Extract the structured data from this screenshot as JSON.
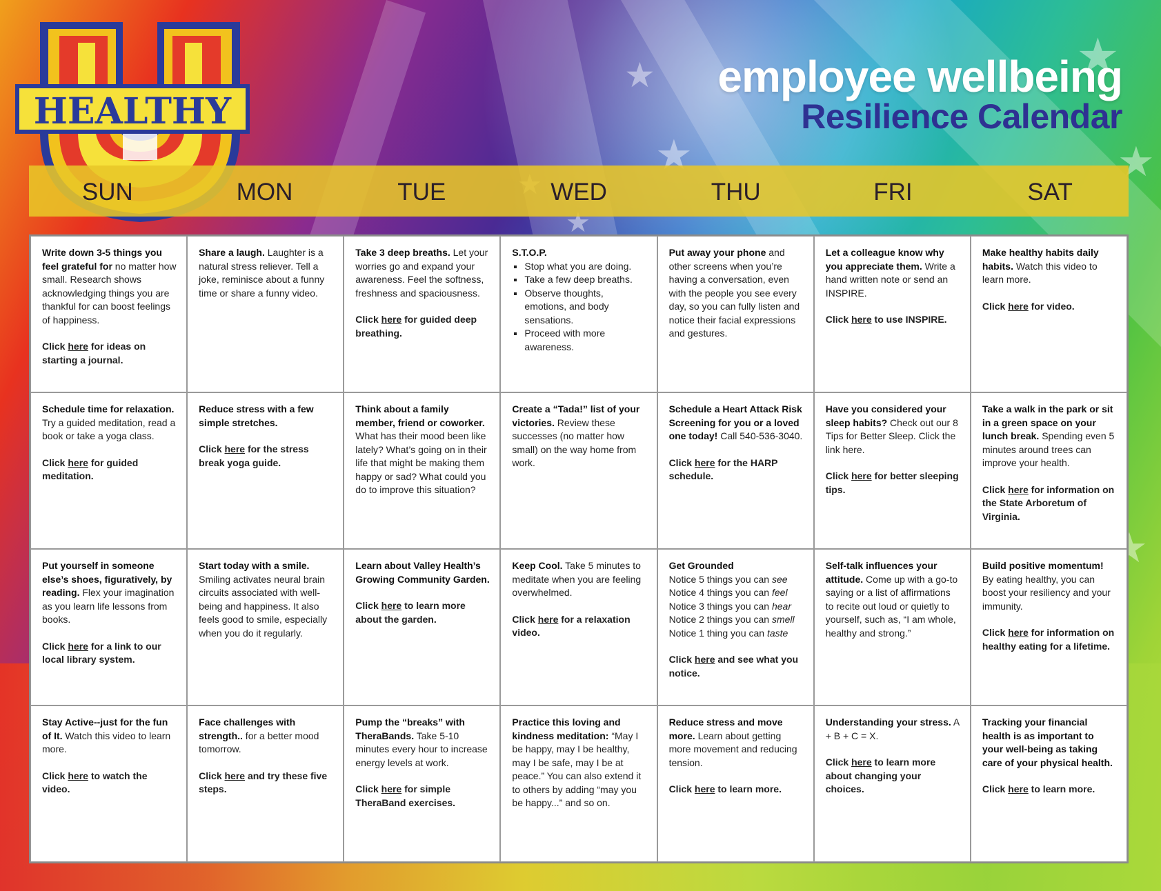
{
  "title": {
    "line1": "employee wellbeing",
    "line2": "Resilience Calendar"
  },
  "logo": {
    "text": "HEALTHY",
    "letter": "U"
  },
  "days": [
    "SUN",
    "MON",
    "TUE",
    "WED",
    "THU",
    "FRI",
    "SAT"
  ],
  "cells": [
    {
      "bold": "Write down 3-5 things you feel grateful for",
      "text": " no matter how small. Research shows acknowledging things you are thankful for can boost feelings of happiness.",
      "click": "Click ",
      "link": "here",
      "after": " for ideas on starting a journal."
    },
    {
      "bold": "Share a laugh.",
      "text": " Laughter is a natural stress reliever. Tell a joke, reminisce about a funny time or share a funny video.",
      "click": "",
      "link": "",
      "after": ""
    },
    {
      "bold": "Take 3 deep breaths.",
      "text": " Let your worries go and expand your awareness. Feel the softness, freshness and spaciousness.",
      "click": "Click ",
      "link": "here",
      "after": " for guided deep breathing."
    },
    {
      "bold": "S.T.O.P.",
      "text": "",
      "list": [
        "Stop what you are doing.",
        "Take a few deep breaths.",
        "Observe thoughts, emotions, and body sensations.",
        "Proceed with more awareness."
      ],
      "click": "",
      "link": "",
      "after": ""
    },
    {
      "bold": "Put away your phone",
      "text": " and other screens when you’re having a conversation, even with the people you see every day, so you can fully listen and notice their facial expressions and gestures.",
      "click": "",
      "link": "",
      "after": ""
    },
    {
      "bold": "Let a colleague know why you appreciate them.",
      "text": " Write a hand written note or send an INSPIRE.",
      "click": "Click ",
      "link": "here",
      "after": " to use INSPIRE."
    },
    {
      "bold": "Make healthy habits daily habits.",
      "text": " Watch this video to learn more.",
      "click": "Click ",
      "link": "here",
      "after": " for video."
    },
    {
      "bold": "Schedule time for relaxation.",
      "text": " Try a guided meditation, read a book or take a yoga class.",
      "click": "Click ",
      "link": "here",
      "after": " for guided meditation."
    },
    {
      "bold": "Reduce stress with a few simple stretches.",
      "text": "",
      "click": "Click ",
      "link": "here",
      "after": " for the stress break yoga guide."
    },
    {
      "bold": "Think about a family member, friend or coworker.",
      "text": " What has their mood been like lately? What’s going on in their life that might be making them happy or sad? What could you do to improve this situation?",
      "click": "",
      "link": "",
      "after": ""
    },
    {
      "bold": "Create a “Tada!” list of your victories.",
      "text": " Review these successes (no matter how small) on the way home from work.",
      "click": "",
      "link": "",
      "after": ""
    },
    {
      "bold": "Schedule a Heart Attack Risk Screening for you or a loved one today!",
      "text": " Call 540-536-3040.",
      "click": "Click ",
      "link": "here",
      "after": " for the HARP schedule."
    },
    {
      "bold": "Have you considered your sleep habits?",
      "text": " Check out our 8 Tips for Better Sleep. Click the link here.",
      "click": "Click ",
      "link": "here",
      "after": " for better sleeping tips."
    },
    {
      "bold": "Take a walk in the park or sit in a green space on your lunch break.",
      "text": " Spending even 5 minutes around trees can improve your health.",
      "click": "Click ",
      "link": "here",
      "after": " for information on the State Arboretum of Virginia."
    },
    {
      "bold": "Put yourself in someone else’s shoes, figuratively, by reading.",
      "text": " Flex your imagination as you learn life lessons from books.",
      "click": "Click ",
      "link": "here",
      "after": " for a link to our local library system."
    },
    {
      "bold": "Start today with a smile.",
      "text": " Smiling activates neural brain circuits associated with well-being and happiness. It also feels good to smile, especially when you do it regularly.",
      "click": "",
      "link": "",
      "after": ""
    },
    {
      "bold": "Learn about Valley Health’s Growing Community Garden.",
      "text": "",
      "click": "Click ",
      "link": "here",
      "after": " to learn more about the garden."
    },
    {
      "bold": "Keep Cool.",
      "text": " Take 5 minutes to meditate when you are feeling overwhelmed.",
      "click": "Click ",
      "link": "here",
      "after": " for a relaxation video."
    },
    {
      "bold": "Get Grounded",
      "text": "",
      "lines": [
        [
          "Notice 5 things you can ",
          "see"
        ],
        [
          "Notice 4 things you can ",
          "feel"
        ],
        [
          "Notice 3 things you can ",
          "hear"
        ],
        [
          "Notice 2 things you can ",
          "smell"
        ],
        [
          "Notice 1 thing you can ",
          "taste"
        ]
      ],
      "click": "Click ",
      "link": "here",
      "after": " and see what you notice."
    },
    {
      "bold": "Self-talk influences your attitude.",
      "text": " Come up with a go-to saying or a list of affirmations to recite out loud or quietly to yourself, such as, “I am whole, healthy and strong.”",
      "click": "",
      "link": "",
      "after": ""
    },
    {
      "bold": "Build positive momentum!",
      "text": " By eating healthy, you can boost your resiliency and your immunity.",
      "click": "Click ",
      "link": "here",
      "after": " for information on healthy eating for a lifetime."
    },
    {
      "bold": "Stay Active--just for the fun of It.",
      "text": " Watch this video to learn more.",
      "click": "Click ",
      "link": "here",
      "after": " to watch the video."
    },
    {
      "bold": "Face challenges with strength..",
      "text": " for a better mood tomorrow.",
      "click": "Click ",
      "link": "here",
      "after": " and try these five steps."
    },
    {
      "bold": "Pump the “breaks” with TheraBands.",
      "text": " Take 5-10 minutes every hour to increase energy levels at work.",
      "click": "Click ",
      "link": "here",
      "after": " for simple TheraBand exercises."
    },
    {
      "bold": "Practice this loving and kindness meditation:",
      "text": " “May I be happy, may I be healthy, may I be safe, may I be at peace.” You can also extend it to others by adding “may you be happy...” and so on.",
      "click": "",
      "link": "",
      "after": ""
    },
    {
      "bold": "Reduce stress and move more.",
      "text": "  Learn about getting more movement and reducing tension.",
      "click": "Click ",
      "link": "here",
      "after": " to learn more."
    },
    {
      "bold": "Understanding your stress.",
      "text": " A + B + C = X.",
      "click": "Click ",
      "link": "here",
      "after": " to learn more about changing your choices."
    },
    {
      "bold": "Tracking your financial health is as important to your well-being as taking care of your physical health.",
      "text": "",
      "click": "Click ",
      "link": "here",
      "after": " to learn more."
    }
  ]
}
